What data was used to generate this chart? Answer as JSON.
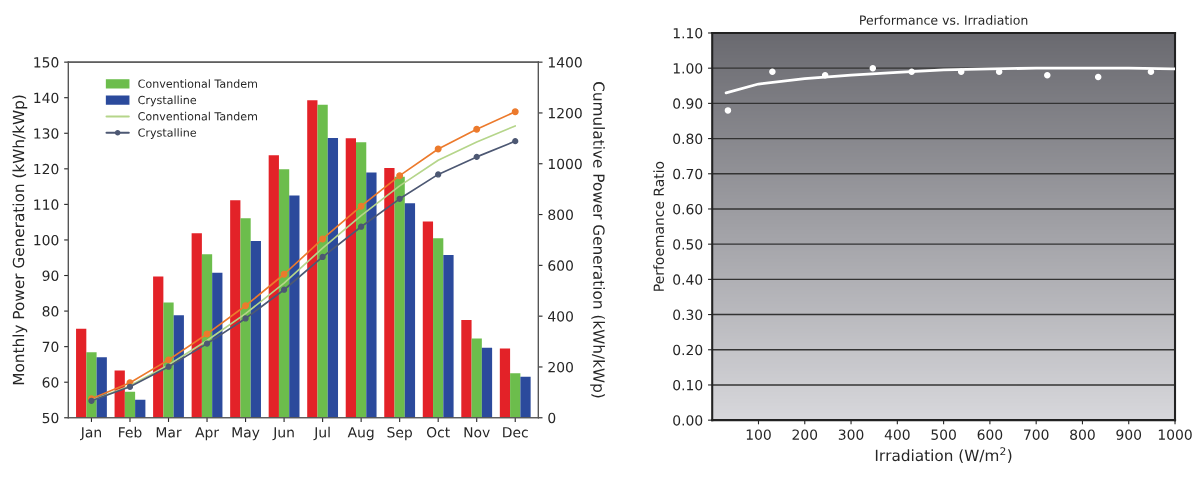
{
  "chart_data": [
    {
      "type": "bar",
      "categories": [
        "Jan",
        "Feb",
        "Mar",
        "Apr",
        "May",
        "Jun",
        "Jul",
        "Aug",
        "Sep",
        "Oct",
        "Nov",
        "Dec"
      ],
      "ylabel": "Monthly Power Generation (kWh/kWp)",
      "y2label": "Cumulative Power Generation (kWh/kWp)",
      "ylim": [
        50,
        150
      ],
      "yticks": [
        50,
        60,
        70,
        80,
        90,
        100,
        110,
        120,
        130,
        140,
        150
      ],
      "y2lim": [
        0,
        1400
      ],
      "y2ticks": [
        0,
        200,
        400,
        600,
        800,
        1000,
        1200,
        1400
      ],
      "grid": false,
      "legend": "top left",
      "series": [
        {
          "type": "bar",
          "color": "#e32228",
          "values": [
            75,
            63.3,
            89.7,
            101.9,
            111.2,
            123.8,
            139.3,
            128.6,
            120.2,
            105.2,
            77.5,
            69.5
          ]
        },
        {
          "type": "bar",
          "name": "Conventional Tandem",
          "color": "#6cbd4c",
          "values": [
            68.4,
            57.3,
            82.4,
            96,
            106.1,
            119.9,
            138,
            127.5,
            117.8,
            100.5,
            72.3,
            62.5
          ]
        },
        {
          "type": "bar",
          "name": "Crystalline",
          "color": "#2b4a9c",
          "values": [
            67,
            55.1,
            78.8,
            90.8,
            99.7,
            112.5,
            128.7,
            119,
            110.3,
            95.8,
            69.7,
            61.5
          ]
        },
        {
          "type": "line",
          "axis": "y2",
          "marker": "circle",
          "color": "#ec7a2c",
          "values": [
            75,
            138,
            228,
            330,
            441,
            565,
            704,
            833,
            953,
            1058,
            1136,
            1205
          ]
        },
        {
          "type": "line",
          "axis": "y2",
          "name": "Conventional Tandem",
          "marker": "none",
          "color": "#b5d58a",
          "values": [
            68,
            126,
            208,
            304,
            410,
            530,
            668,
            796,
            913,
            1014,
            1086,
            1149
          ]
        },
        {
          "type": "line",
          "axis": "y2",
          "name": "Crystalline",
          "marker": "circle",
          "color": "#4d5873",
          "values": [
            67,
            122,
            201,
            292,
            391,
            504,
            633,
            752,
            862,
            958,
            1027,
            1089
          ]
        }
      ]
    },
    {
      "type": "scatter",
      "title": "Performance vs. Irradiation",
      "xlabel": "Irradiation (W/m$^{2}$)",
      "ylabel": "Perfoemance Ratio",
      "xlim": [
        0,
        1000
      ],
      "xticks": [
        100,
        200,
        300,
        400,
        500,
        600,
        700,
        800,
        900,
        1000
      ],
      "ylim": [
        0,
        1.1
      ],
      "yticks": [
        {
          "value": 0,
          "label": "0.00"
        },
        {
          "value": 0.1,
          "label": "0.10"
        },
        {
          "value": 0.2,
          "label": "0.20"
        },
        {
          "value": 0.3,
          "label": "0.30"
        },
        {
          "value": 0.4,
          "label": "0.40"
        },
        {
          "value": 0.5,
          "label": "0.50"
        },
        {
          "value": 0.6,
          "label": "0.60"
        },
        {
          "value": 0.7,
          "label": "0.70"
        },
        {
          "value": 0.8,
          "label": "0.80"
        },
        {
          "value": 0.9,
          "label": "0.90"
        },
        {
          "value": 1.0,
          "label": "1.00"
        },
        {
          "value": 1.1,
          "label": "1.10"
        }
      ],
      "grid": "y",
      "series": [
        {
          "type": "scatter",
          "marker": "circle",
          "color": "#ffffff",
          "x": [
            34,
            130,
            244,
            347,
            431,
            538,
            620,
            724,
            834,
            948
          ],
          "values": [
            0.88,
            0.99,
            0.98,
            1.0,
            0.99,
            0.99,
            0.99,
            0.98,
            0.975,
            0.99
          ]
        },
        {
          "type": "line",
          "marker": "none",
          "color": "#ffffff",
          "x": [
            30,
            100,
            200,
            300,
            400,
            500,
            600,
            700,
            800,
            900,
            1000
          ],
          "values": [
            0.93,
            0.955,
            0.97,
            0.98,
            0.988,
            0.995,
            0.998,
            1.0,
            1.0,
            1.0,
            0.998
          ]
        }
      ]
    }
  ]
}
